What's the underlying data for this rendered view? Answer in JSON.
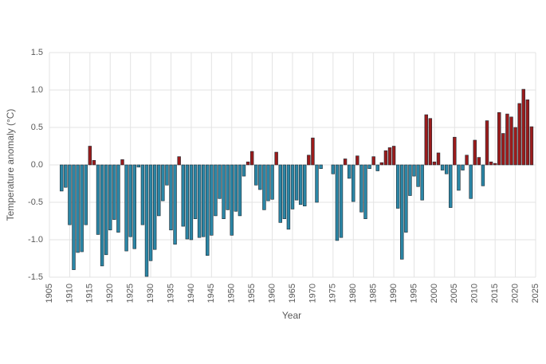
{
  "chart_data": {
    "type": "bar",
    "x_label": "Year",
    "y_label": "Temperature anomaly (°C)",
    "x": [
      1908,
      1909,
      1910,
      1911,
      1912,
      1913,
      1914,
      1915,
      1916,
      1917,
      1918,
      1919,
      1920,
      1921,
      1922,
      1923,
      1924,
      1925,
      1926,
      1927,
      1928,
      1929,
      1930,
      1931,
      1932,
      1933,
      1934,
      1935,
      1936,
      1937,
      1938,
      1939,
      1940,
      1941,
      1942,
      1943,
      1944,
      1945,
      1946,
      1947,
      1948,
      1949,
      1950,
      1951,
      1952,
      1953,
      1954,
      1955,
      1956,
      1957,
      1958,
      1959,
      1960,
      1961,
      1962,
      1963,
      1964,
      1965,
      1966,
      1967,
      1968,
      1969,
      1970,
      1971,
      1972,
      1973,
      1974,
      1975,
      1976,
      1977,
      1978,
      1979,
      1980,
      1981,
      1982,
      1983,
      1984,
      1985,
      1986,
      1987,
      1988,
      1989,
      1990,
      1991,
      1992,
      1993,
      1994,
      1995,
      1996,
      1997,
      1998,
      1999,
      2000,
      2001,
      2002,
      2003,
      2004,
      2005,
      2006,
      2007,
      2008,
      2009,
      2010,
      2011,
      2012,
      2013,
      2014,
      2015,
      2016,
      2017,
      2018,
      2019,
      2020,
      2021,
      2022,
      2023,
      2024
    ],
    "values": [
      -0.35,
      -0.3,
      -0.8,
      -1.4,
      -1.17,
      -1.16,
      -0.8,
      0.25,
      0.06,
      -0.93,
      -1.35,
      -1.2,
      -0.87,
      -0.73,
      -0.9,
      0.07,
      -1.15,
      -0.96,
      -1.12,
      -0.03,
      -0.8,
      -1.49,
      -1.28,
      -1.13,
      -0.68,
      -0.48,
      -0.27,
      -0.87,
      -1.06,
      0.11,
      -0.82,
      -0.99,
      -1.0,
      -0.72,
      -0.97,
      -0.96,
      -1.21,
      -0.94,
      -0.68,
      -0.45,
      -0.72,
      -0.6,
      -0.94,
      -0.62,
      -0.68,
      -0.15,
      0.04,
      0.18,
      -0.27,
      -0.33,
      -0.6,
      -0.48,
      -0.46,
      0.17,
      -0.77,
      -0.72,
      -0.86,
      -0.59,
      -0.47,
      -0.53,
      -0.55,
      0.13,
      0.36,
      -0.5,
      -0.05,
      null,
      null,
      -0.12,
      -1.01,
      -0.97,
      0.08,
      -0.18,
      -0.49,
      0.12,
      -0.63,
      -0.72,
      -0.05,
      0.11,
      -0.08,
      0.03,
      0.19,
      0.23,
      0.25,
      -0.58,
      -1.26,
      -0.9,
      -0.41,
      -0.15,
      -0.29,
      -0.47,
      0.67,
      0.62,
      0.04,
      0.16,
      -0.07,
      -0.12,
      -0.57,
      0.37,
      -0.34,
      -0.07,
      0.13,
      -0.45,
      0.33,
      0.1,
      -0.28,
      0.59,
      0.04,
      0.02,
      0.7,
      0.42,
      0.68,
      0.64,
      0.5,
      0.82,
      1.01,
      0.87,
      0.51
    ],
    "positive_color": "#9b1b1b",
    "negative_color": "#2b86a6",
    "xlim": [
      1905,
      2025
    ],
    "xticks": [
      1905,
      1910,
      1915,
      1920,
      1925,
      1930,
      1935,
      1940,
      1945,
      1950,
      1955,
      1960,
      1965,
      1970,
      1975,
      1980,
      1985,
      1990,
      1995,
      2000,
      2005,
      2010,
      2015,
      2020,
      2025
    ],
    "ylim": [
      -1.5,
      1.5
    ],
    "yticks": [
      1.5,
      {
        "value": 1,
        "label": "1.0"
      },
      0.5,
      {
        "value": 0,
        "label": "0.0"
      },
      -0.5,
      {
        "value": -1,
        "label": "-1.0"
      },
      -1.5
    ],
    "grid": true
  }
}
